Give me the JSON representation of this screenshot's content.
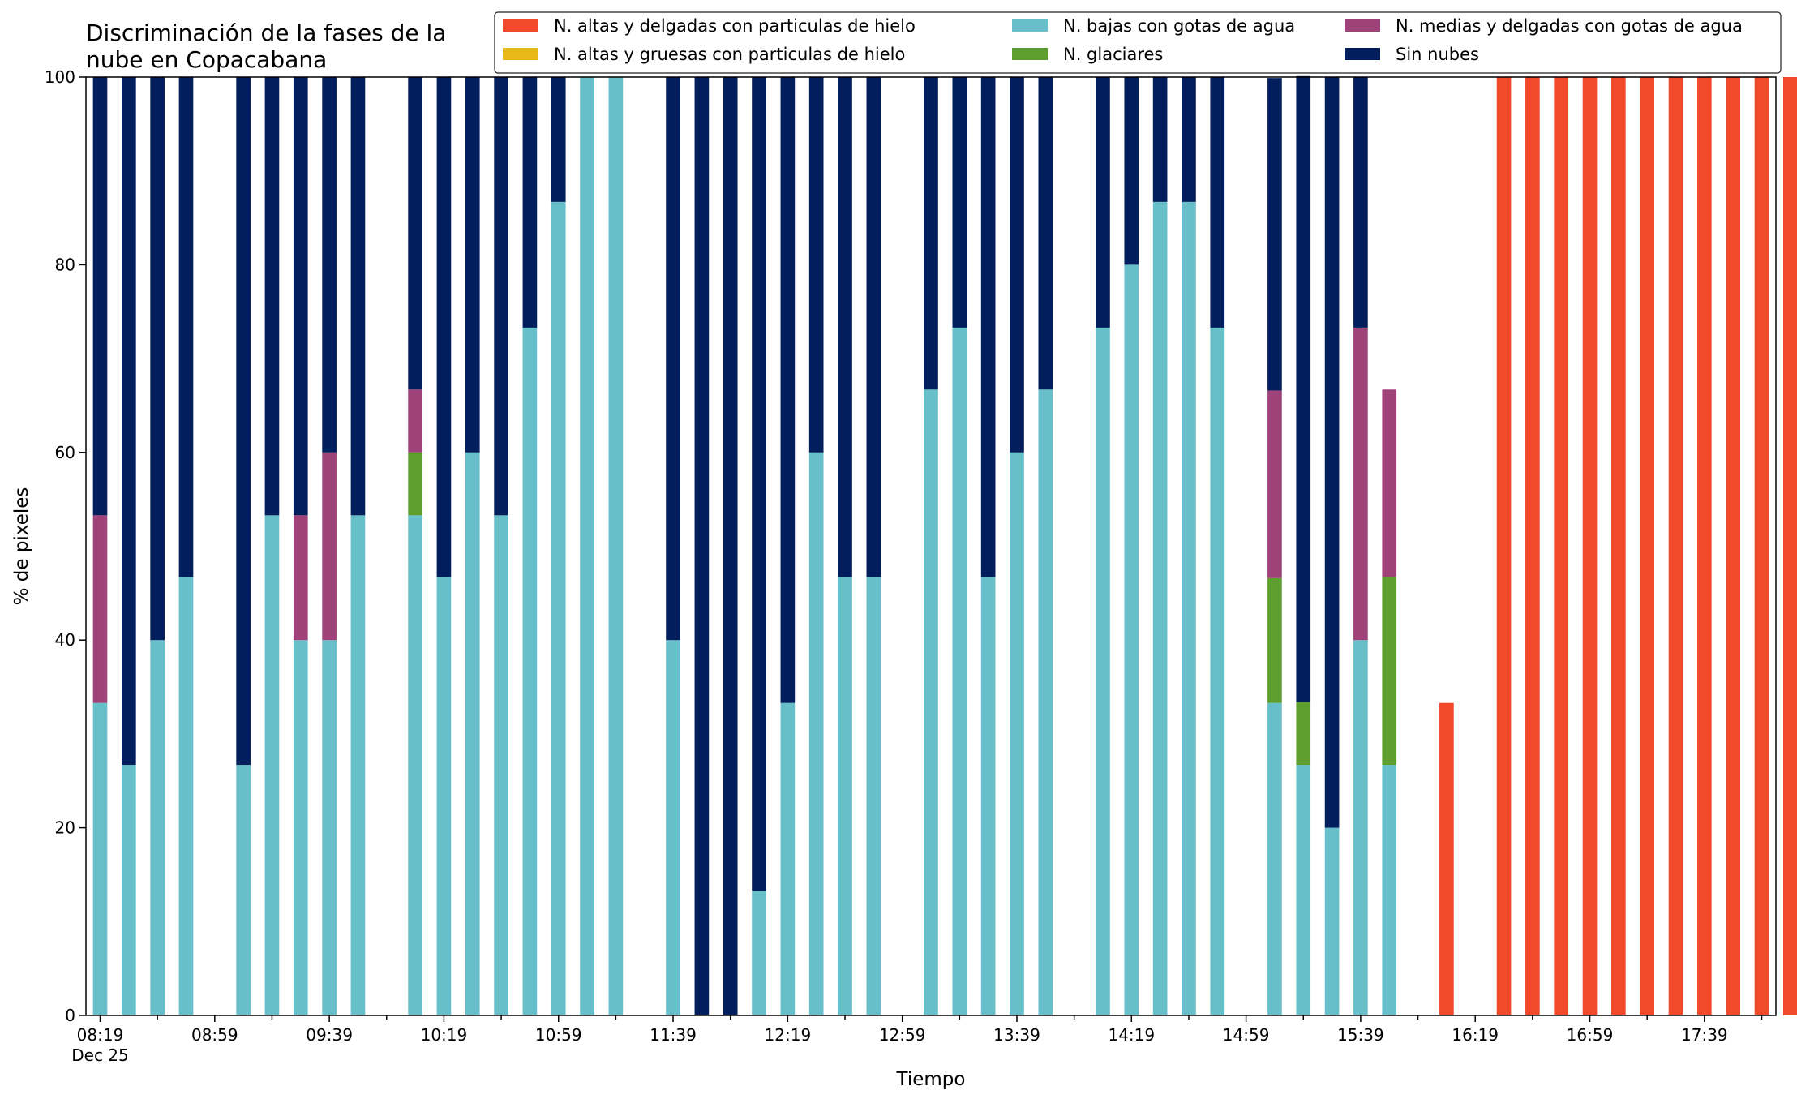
{
  "chart_data": {
    "type": "bar",
    "stacked": true,
    "title_lines": [
      "Discriminación de la fases de la",
      "nube en Copacabana"
    ],
    "xlabel": "Tiempo",
    "ylabel": "% de pixeles",
    "ylim": [
      0,
      100
    ],
    "yticks": [
      0,
      20,
      40,
      60,
      80,
      100
    ],
    "date_label": "Dec 25",
    "interval_minutes": 10,
    "x_start": "08:19",
    "x_end": "17:59",
    "grid": false,
    "legend_position": "top-right",
    "xtick_labels": [
      "08:19",
      "08:59",
      "09:39",
      "10:19",
      "10:59",
      "11:39",
      "12:19",
      "12:59",
      "13:39",
      "14:19",
      "14:59",
      "15:39",
      "16:19",
      "16:59",
      "17:39"
    ],
    "series": [
      {
        "name": "N. altas y delgadas con particulas de hielo",
        "color": "#F04A2A",
        "values": [
          0,
          0,
          0,
          0,
          0,
          0,
          0,
          0,
          0,
          0,
          0,
          0,
          0,
          0,
          0,
          0,
          0,
          0,
          0,
          0,
          0,
          0,
          0,
          0,
          0,
          0,
          0,
          0,
          0,
          0,
          0,
          0,
          0,
          0,
          0,
          0,
          0,
          0,
          0,
          0,
          0,
          0,
          0,
          0,
          0,
          0,
          0,
          33.3,
          0,
          100,
          100,
          100,
          100,
          100,
          100,
          100,
          100,
          100,
          100,
          100
        ]
      },
      {
        "name": "N. altas y gruesas con particulas de hielo",
        "color": "#E8B818",
        "values": [
          0,
          0,
          0,
          0,
          0,
          0,
          0,
          0,
          0,
          0,
          0,
          0,
          0,
          0,
          0,
          0,
          0,
          0,
          0,
          0,
          0,
          0,
          0,
          0,
          0,
          0,
          0,
          0,
          0,
          0,
          0,
          0,
          0,
          0,
          0,
          0,
          0,
          0,
          0,
          0,
          0,
          0,
          0,
          0,
          0,
          0,
          0,
          0,
          0,
          0,
          0,
          0,
          0,
          0,
          0,
          0,
          0,
          0,
          0,
          0
        ]
      },
      {
        "name": "N. bajas con gotas de agua",
        "color": "#67BFC9",
        "values": [
          33.3,
          26.7,
          40,
          46.7,
          0,
          26.7,
          53.3,
          40,
          40,
          53.3,
          0,
          53.3,
          46.7,
          60,
          53.3,
          73.3,
          86.7,
          100,
          100,
          0,
          40,
          0,
          0,
          13.3,
          33.3,
          60,
          46.7,
          46.7,
          0,
          66.7,
          73.3,
          46.7,
          60,
          66.7,
          0,
          73.3,
          80,
          86.7,
          86.7,
          73.3,
          0,
          33.3,
          26.7,
          20,
          40,
          26.7,
          0,
          0,
          0,
          0,
          0,
          0,
          0,
          0,
          0,
          0,
          0,
          0,
          0,
          0
        ]
      },
      {
        "name": "N. glaciares",
        "color": "#5E9E2E",
        "values": [
          0,
          0,
          0,
          0,
          0,
          0,
          0,
          0,
          0,
          0,
          0,
          6.7,
          0,
          0,
          0,
          0,
          0,
          0,
          0,
          0,
          0,
          0,
          0,
          0,
          0,
          0,
          0,
          0,
          0,
          0,
          0,
          0,
          0,
          0,
          0,
          0,
          0,
          0,
          0,
          0,
          0,
          13.3,
          6.7,
          0,
          0,
          20,
          0,
          0,
          0,
          0,
          0,
          0,
          0,
          0,
          0,
          0,
          0,
          0,
          0,
          0
        ]
      },
      {
        "name": "N. medias y delgadas con gotas de agua",
        "color": "#A0427A",
        "values": [
          20,
          0,
          0,
          0,
          0,
          0,
          0,
          13.3,
          20,
          0,
          0,
          6.7,
          0,
          0,
          0,
          0,
          0,
          0,
          0,
          0,
          0,
          0,
          0,
          0,
          0,
          0,
          0,
          0,
          0,
          0,
          0,
          0,
          0,
          0,
          0,
          0,
          0,
          0,
          0,
          0,
          0,
          20,
          0,
          0,
          33.3,
          20,
          0,
          0,
          0,
          0,
          0,
          0,
          0,
          0,
          0,
          0,
          0,
          0,
          0,
          0
        ]
      },
      {
        "name": "Sin nubes",
        "color": "#031E5C",
        "values": [
          46.7,
          73.3,
          60,
          53.3,
          0,
          73.3,
          46.7,
          46.7,
          40,
          46.7,
          0,
          33.3,
          53.3,
          40,
          46.7,
          26.7,
          13.3,
          0,
          0,
          0,
          60,
          100,
          100,
          86.7,
          66.7,
          40,
          53.3,
          53.3,
          0,
          33.3,
          26.7,
          53.3,
          40,
          33.3,
          0,
          26.7,
          20,
          13.3,
          13.3,
          26.7,
          0,
          33.3,
          66.7,
          80,
          26.7,
          0,
          0,
          0,
          0,
          0,
          0,
          0,
          0,
          0,
          0,
          0,
          0,
          0,
          0,
          0
        ]
      }
    ]
  }
}
